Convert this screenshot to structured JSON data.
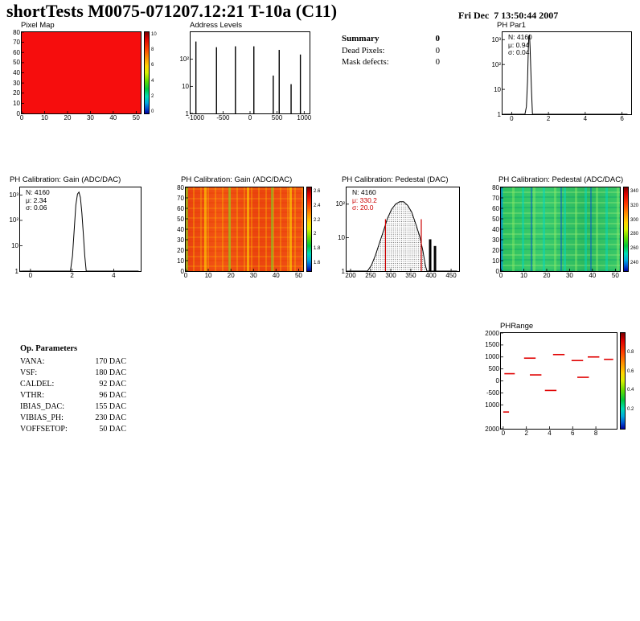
{
  "header": {
    "title": "shortTests M0075-071207.12:21 T-10a (C11)",
    "datetime": "Fri Dec  7 13:50:44 2007"
  },
  "summary": {
    "title": "Summary",
    "value": "0",
    "rows": [
      {
        "label": "Dead Pixels:",
        "value": "0"
      },
      {
        "label": "Mask defects:",
        "value": "0"
      }
    ]
  },
  "op_parameters": {
    "title": "Op. Parameters",
    "rows": [
      {
        "label": "VANA:",
        "value": "170 DAC"
      },
      {
        "label": "VSF:",
        "value": "180 DAC"
      },
      {
        "label": "CALDEL:",
        "value": "92 DAC"
      },
      {
        "label": "VTHR:",
        "value": "96 DAC"
      },
      {
        "label": "IBIAS_DAC:",
        "value": "155 DAC"
      },
      {
        "label": "VIBIAS_PH:",
        "value": "230 DAC"
      },
      {
        "label": "VOFFSETOP:",
        "value": "50 DAC"
      }
    ]
  },
  "colors": {
    "background": "#ffffff",
    "frame": "#000000",
    "histogram": "#000000",
    "stat_red": "#cc0000",
    "marker_red": "#e00000"
  },
  "chart_data": [
    {
      "id": "pixel_map",
      "type": "heatmap",
      "title": "Pixel Map",
      "x_range": [
        0,
        52
      ],
      "y_range": [
        0,
        80
      ],
      "data_note": "uniform value map - every pixel at scale maximum (solid red)",
      "xticks": [
        [
          "0",
          0.0
        ],
        [
          "10",
          0.192
        ],
        [
          "20",
          0.385
        ],
        [
          "30",
          0.577
        ],
        [
          "40",
          0.769
        ],
        [
          "50",
          0.962
        ]
      ],
      "yticks": [
        [
          "0",
          0.0
        ],
        [
          "10",
          0.125
        ],
        [
          "20",
          0.25
        ],
        [
          "30",
          0.375
        ],
        [
          "40",
          0.5
        ],
        [
          "50",
          0.625
        ],
        [
          "60",
          0.75
        ],
        [
          "70",
          0.875
        ],
        [
          "80",
          1.0
        ]
      ],
      "colorbar": {
        "labels": [
          [
            "10",
            0.97
          ],
          [
            "8",
            0.78
          ],
          [
            "6",
            0.59
          ],
          [
            "4",
            0.4
          ],
          [
            "2",
            0.21
          ],
          [
            "0",
            0.02
          ]
        ]
      }
    },
    {
      "id": "address_levels",
      "type": "bar",
      "title": "Address Levels",
      "x_range": [
        -1100,
        1100
      ],
      "ylog_decades": 3,
      "xticks": [
        [
          "-1000",
          0.045
        ],
        [
          "-500",
          0.273
        ],
        [
          "0",
          0.5
        ],
        [
          "500",
          0.727
        ],
        [
          "1000",
          0.955
        ]
      ],
      "yticks": [
        [
          "1",
          0.0
        ],
        [
          "10",
          0.333
        ],
        [
          "10²",
          0.667
        ]
      ],
      "peaks": [
        {
          "x": -1000,
          "count": 450
        },
        {
          "x": -620,
          "count": 280
        },
        {
          "x": -270,
          "count": 300
        },
        {
          "x": 70,
          "count": 300
        },
        {
          "x": 430,
          "count": 25
        },
        {
          "x": 540,
          "count": 220
        },
        {
          "x": 760,
          "count": 12
        },
        {
          "x": 930,
          "count": 150
        }
      ],
      "spike_w": 1.4,
      "spikes": [
        [
          0.045,
          0.885
        ],
        [
          0.218,
          0.815
        ],
        [
          0.377,
          0.826
        ],
        [
          0.532,
          0.826
        ],
        [
          0.695,
          0.466
        ],
        [
          0.745,
          0.782
        ],
        [
          0.845,
          0.36
        ],
        [
          0.923,
          0.725
        ]
      ]
    },
    {
      "id": "ph_par1",
      "type": "bar",
      "title": "PH Par1",
      "stats": [
        {
          "t": "N: 4160",
          "c": "#000000"
        },
        {
          "t": "μ: 0.94",
          "c": "#000000"
        },
        {
          "t": "σ: 0.04",
          "c": "#000000"
        }
      ],
      "x_range": [
        -0.5,
        6.5
      ],
      "xticks": [
        [
          "0",
          0.071
        ],
        [
          "2",
          0.357
        ],
        [
          "4",
          0.643
        ],
        [
          "6",
          0.929
        ]
      ],
      "yticks": [
        [
          "1",
          0.0
        ],
        [
          "10",
          0.303
        ],
        [
          "10²",
          0.606
        ],
        [
          "10³",
          0.909
        ]
      ],
      "curve": {
        "x0": -0.5,
        "x1": 6.5,
        "ydec": 3.3,
        "color": "#000000",
        "points": [
          [
            -0.4,
            0.8
          ],
          [
            0.72,
            0.8
          ],
          [
            0.8,
            2
          ],
          [
            0.86,
            20
          ],
          [
            0.9,
            300
          ],
          [
            0.93,
            1400
          ],
          [
            0.97,
            1500
          ],
          [
            1.0,
            500
          ],
          [
            1.04,
            60
          ],
          [
            1.08,
            8
          ],
          [
            1.13,
            0.8
          ],
          [
            6.3,
            0.8
          ]
        ]
      }
    },
    {
      "id": "gain_1d",
      "type": "bar",
      "title": "PH Calibration: Gain (ADC/DAC)",
      "stats": [
        {
          "t": "N: 4160",
          "c": "#000000"
        },
        {
          "t": "μ: 2.34",
          "c": "#000000"
        },
        {
          "t": "σ: 0.06",
          "c": "#000000"
        }
      ],
      "x_range": [
        -0.5,
        5.3
      ],
      "xticks": [
        [
          "0",
          0.086
        ],
        [
          "2",
          0.431
        ],
        [
          "4",
          0.776
        ]
      ],
      "yticks": [
        [
          "1",
          0.0
        ],
        [
          "10",
          0.303
        ],
        [
          "10²",
          0.606
        ],
        [
          "10³",
          0.909
        ]
      ],
      "curve": {
        "x0": -0.5,
        "x1": 5.3,
        "ydec": 3.3,
        "color": "#000000",
        "points": [
          [
            -0.4,
            0.8
          ],
          [
            1.92,
            0.8
          ],
          [
            2.02,
            4
          ],
          [
            2.1,
            40
          ],
          [
            2.18,
            400
          ],
          [
            2.26,
            1100
          ],
          [
            2.33,
            1300
          ],
          [
            2.4,
            800
          ],
          [
            2.47,
            200
          ],
          [
            2.54,
            30
          ],
          [
            2.61,
            4
          ],
          [
            2.68,
            0.8
          ],
          [
            5.2,
            0.8
          ]
        ]
      }
    },
    {
      "id": "gain_2d",
      "type": "heatmap",
      "title": "PH Calibration: Gain (ADC/DAC)",
      "x_range": [
        0,
        52
      ],
      "y_range": [
        0,
        80
      ],
      "data_note": "gain map mostly red/orange (~2.3 ADC/DAC) with vertical yellow-green lower-gain column streaks",
      "xticks": [
        [
          "0",
          0.0
        ],
        [
          "10",
          0.192
        ],
        [
          "20",
          0.385
        ],
        [
          "30",
          0.577
        ],
        [
          "40",
          0.769
        ],
        [
          "50",
          0.962
        ]
      ],
      "yticks": [
        [
          "0",
          0.0
        ],
        [
          "10",
          0.125
        ],
        [
          "20",
          0.25
        ],
        [
          "30",
          0.375
        ],
        [
          "40",
          0.5
        ],
        [
          "50",
          0.625
        ],
        [
          "60",
          0.75
        ],
        [
          "70",
          0.875
        ],
        [
          "80",
          1.0
        ]
      ],
      "colorbar": {
        "labels": [
          [
            "2.6",
            0.95
          ],
          [
            "2.4",
            0.78
          ],
          [
            "2.2",
            0.61
          ],
          [
            "2",
            0.44
          ],
          [
            "1.8",
            0.27
          ],
          [
            "1.6",
            0.1
          ]
        ]
      }
    },
    {
      "id": "pedestal_1d",
      "type": "bar",
      "title": "PH Calibration: Pedestal (DAC)",
      "stats": [
        {
          "t": "N: 4160",
          "c": "#000000"
        },
        {
          "t": "μ: 330.2",
          "c": "#cc0000"
        },
        {
          "t": "σ: 20.0",
          "c": "#cc0000"
        }
      ],
      "x_range": [
        190,
        470
      ],
      "xticks": [
        [
          "200",
          0.036
        ],
        [
          "250",
          0.214
        ],
        [
          "300",
          0.393
        ],
        [
          "350",
          0.571
        ],
        [
          "400",
          0.75
        ],
        [
          "450",
          0.929
        ]
      ],
      "yticks": [
        [
          "1",
          0.0
        ],
        [
          "10",
          0.4
        ],
        [
          "10²",
          0.8
        ]
      ],
      "curve": {
        "x0": 190,
        "x1": 470,
        "ydec": 2.5,
        "color": "#000000",
        "fill": "dots",
        "points": [
          [
            195,
            0.8
          ],
          [
            242,
            0.8
          ],
          [
            252,
            1.5
          ],
          [
            262,
            3
          ],
          [
            272,
            7
          ],
          [
            282,
            16
          ],
          [
            292,
            38
          ],
          [
            302,
            70
          ],
          [
            312,
            100
          ],
          [
            322,
            118
          ],
          [
            332,
            118
          ],
          [
            342,
            92
          ],
          [
            352,
            58
          ],
          [
            362,
            26
          ],
          [
            372,
            11
          ],
          [
            380,
            4
          ],
          [
            386,
            1.5
          ],
          [
            390,
            0.8
          ],
          [
            465,
            0.8
          ]
        ]
      },
      "spike_w": 3,
      "spikes": [
        [
          0.743,
          0.38
        ],
        [
          0.786,
          0.3
        ]
      ],
      "vlines": [
        {
          "f": 0.346,
          "h": 0.62,
          "color": "#cc0000"
        },
        {
          "f": 0.664,
          "h": 0.62,
          "color": "#cc0000"
        }
      ]
    },
    {
      "id": "pedestal_2d",
      "type": "heatmap",
      "title": "PH Calibration: Pedestal (ADC/DAC)",
      "x_range": [
        0,
        52
      ],
      "y_range": [
        0,
        80
      ],
      "data_note": "pedestal map mottled green/teal with occasional cyan and dark blue columns",
      "xticks": [
        [
          "0",
          0.0
        ],
        [
          "10",
          0.192
        ],
        [
          "20",
          0.385
        ],
        [
          "30",
          0.577
        ],
        [
          "40",
          0.769
        ],
        [
          "50",
          0.962
        ]
      ],
      "yticks": [
        [
          "0",
          0.0
        ],
        [
          "10",
          0.125
        ],
        [
          "20",
          0.25
        ],
        [
          "30",
          0.375
        ],
        [
          "40",
          0.5
        ],
        [
          "50",
          0.625
        ],
        [
          "60",
          0.75
        ],
        [
          "70",
          0.875
        ],
        [
          "80",
          1.0
        ]
      ],
      "colorbar": {
        "labels": [
          [
            "340",
            0.95
          ],
          [
            "320",
            0.78
          ],
          [
            "300",
            0.61
          ],
          [
            "280",
            0.44
          ],
          [
            "260",
            0.27
          ],
          [
            "240",
            0.1
          ]
        ]
      }
    },
    {
      "id": "phrange",
      "type": "scatter",
      "title": "PHRange",
      "x_range": [
        -0.2,
        9.8
      ],
      "y_range": [
        -2000,
        2000
      ],
      "xticks": [
        [
          "0",
          0.02
        ],
        [
          "2",
          0.22
        ],
        [
          "4",
          0.42
        ],
        [
          "6",
          0.62
        ],
        [
          "8",
          0.82
        ]
      ],
      "yticks": [
        [
          "2000",
          1.0
        ],
        [
          "1500",
          0.875
        ],
        [
          "1000",
          0.75
        ],
        [
          "500",
          0.625
        ],
        [
          "0",
          0.5
        ],
        [
          "-500",
          0.375
        ],
        [
          "1000",
          0.25
        ],
        [
          "2000",
          0.0
        ]
      ],
      "seg_color": "#e00000",
      "segments_axis": [
        {
          "x1": 1.8,
          "x2": 2.8,
          "y": 950
        },
        {
          "x1": 4.3,
          "x2": 5.3,
          "y": 1100
        },
        {
          "x1": 5.9,
          "x2": 6.9,
          "y": 850
        },
        {
          "x1": 7.3,
          "x2": 8.3,
          "y": 1000
        },
        {
          "x1": 8.7,
          "x2": 9.5,
          "y": 900
        },
        {
          "x1": 0.1,
          "x2": 1.0,
          "y": 300
        },
        {
          "x1": 2.3,
          "x2": 3.3,
          "y": 250
        },
        {
          "x1": 6.4,
          "x2": 7.4,
          "y": 150
        },
        {
          "x1": 3.6,
          "x2": 4.6,
          "y": -400
        },
        {
          "x1": 0.0,
          "x2": 0.5,
          "y": -1300
        }
      ],
      "segments": [
        [
          0.2,
          0.3,
          0.7375
        ],
        [
          0.45,
          0.55,
          0.775
        ],
        [
          0.61,
          0.71,
          0.7125
        ],
        [
          0.75,
          0.85,
          0.75
        ],
        [
          0.89,
          0.97,
          0.725
        ],
        [
          0.03,
          0.12,
          0.575
        ],
        [
          0.25,
          0.35,
          0.5625
        ],
        [
          0.66,
          0.76,
          0.5375
        ],
        [
          0.38,
          0.48,
          0.4
        ],
        [
          0.02,
          0.07,
          0.175
        ]
      ],
      "colorbar": {
        "labels": [
          [
            "0.8",
            0.8
          ],
          [
            "0.6",
            0.6
          ],
          [
            "0.4",
            0.4
          ],
          [
            "0.2",
            0.2
          ]
        ]
      }
    }
  ]
}
